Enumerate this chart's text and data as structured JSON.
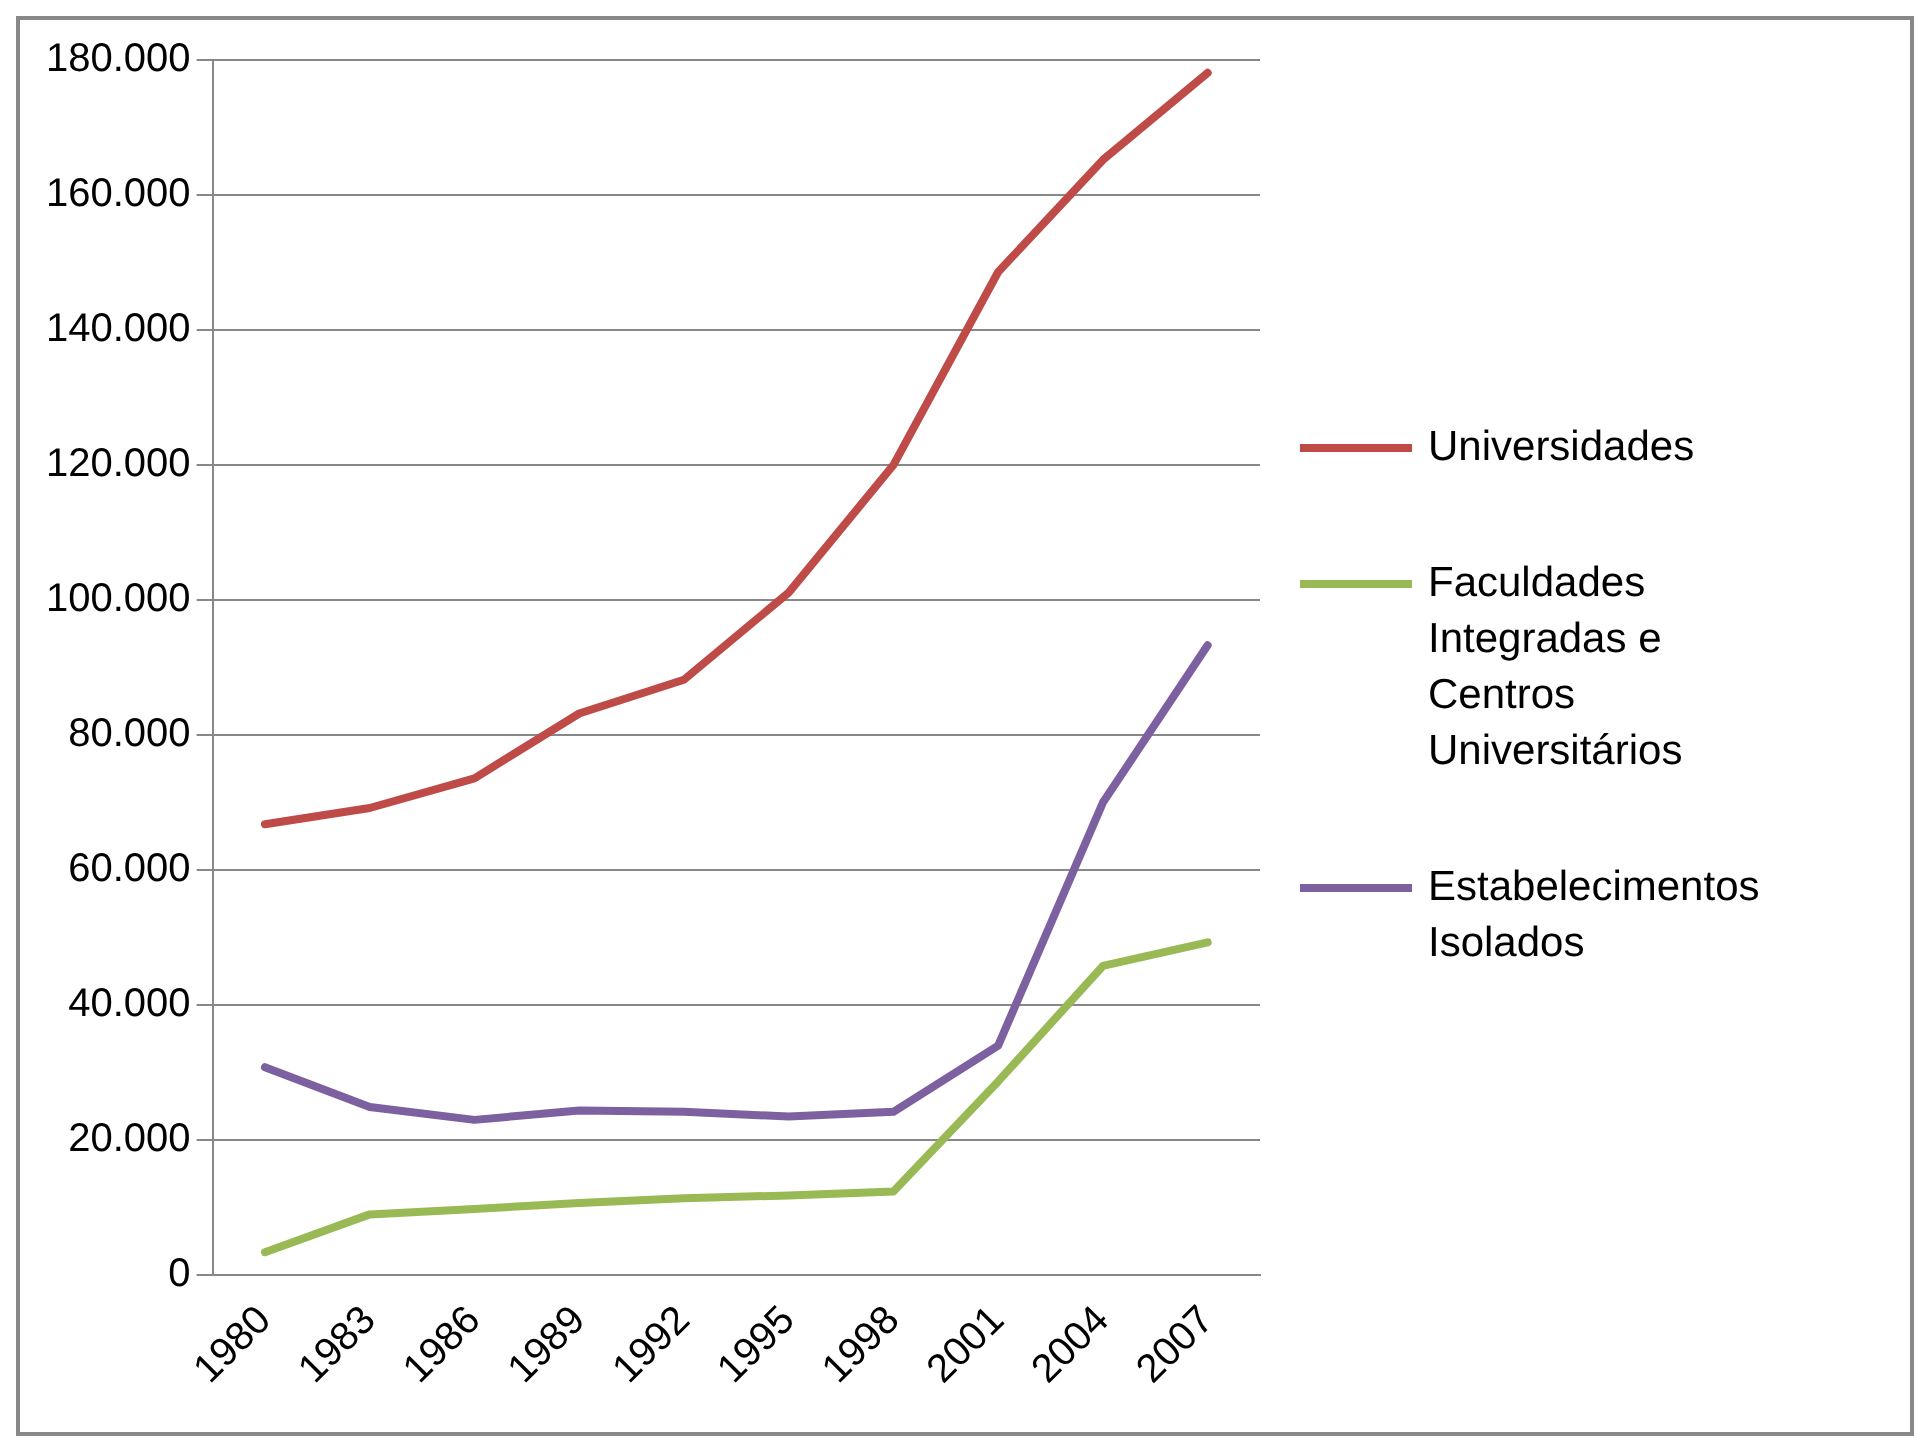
{
  "chart_data": {
    "type": "line",
    "categories": [
      "1980",
      "1983",
      "1986",
      "1989",
      "1992",
      "1995",
      "1998",
      "2001",
      "2004",
      "2007"
    ],
    "series": [
      {
        "name": "Universidades",
        "color": "#be4b48",
        "values": [
          66800,
          69200,
          73600,
          83200,
          88200,
          101100,
          120000,
          148600,
          165200,
          178100
        ]
      },
      {
        "name": "Faculdades Integradas e Centros Universitários",
        "color": "#98b954",
        "values": [
          3400,
          9000,
          9800,
          10700,
          11400,
          11800,
          12400,
          28700,
          45800,
          49300
        ]
      },
      {
        "name": "Estabelecimentos Isolados",
        "color": "#7d60a0",
        "values": [
          30800,
          24900,
          23000,
          24400,
          24200,
          23500,
          24200,
          34000,
          70000,
          93300
        ]
      }
    ],
    "ylim": [
      0,
      180000
    ],
    "yticks": [
      {
        "value": 0,
        "label": "0"
      },
      {
        "value": 20000,
        "label": "20.000"
      },
      {
        "value": 40000,
        "label": "40.000"
      },
      {
        "value": 60000,
        "label": "60.000"
      },
      {
        "value": 80000,
        "label": "80.000"
      },
      {
        "value": 100000,
        "label": "100.000"
      },
      {
        "value": 120000,
        "label": "120.000"
      },
      {
        "value": 140000,
        "label": "140.000"
      },
      {
        "value": 160000,
        "label": "160.000"
      },
      {
        "value": 180000,
        "label": "180.000"
      }
    ],
    "grid": "y",
    "legend": "right",
    "marker": "none",
    "line_style": "solid"
  }
}
